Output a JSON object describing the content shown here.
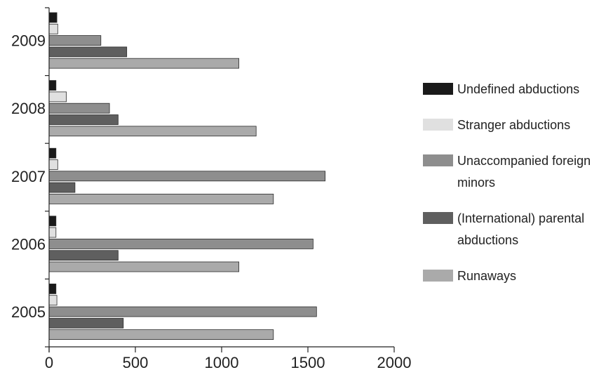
{
  "chart_data": {
    "type": "bar",
    "orientation": "horizontal",
    "title": "",
    "xlabel": "",
    "ylabel": "",
    "xlim": [
      0,
      2000
    ],
    "x_ticks": [
      "0",
      "500",
      "1000",
      "1500",
      "2000"
    ],
    "categories": [
      "2009",
      "2008",
      "2007",
      "2006",
      "2005"
    ],
    "series": [
      {
        "name": "Undefined abductions",
        "color": "#1a1a1a",
        "values": [
          45,
          40,
          40,
          40,
          40
        ]
      },
      {
        "name": "Stranger abductions",
        "color": "#e0e0e0",
        "values": [
          50,
          100,
          50,
          40,
          45
        ]
      },
      {
        "name": "Unaccompanied foreign minors",
        "color": "#8e8e8e",
        "values": [
          300,
          350,
          1600,
          1530,
          1550
        ]
      },
      {
        "name": "(International) parental abductions",
        "color": "#5f5f5f",
        "values": [
          450,
          400,
          150,
          400,
          430
        ]
      },
      {
        "name": "Runaways",
        "color": "#aaaaaa",
        "values": [
          1100,
          1200,
          1300,
          1100,
          1300
        ]
      }
    ],
    "legend": {
      "position": "right",
      "entries": [
        "Undefined abductions",
        "Stranger abductions",
        "Unaccompanied foreign minors",
        "(International) parental abductions",
        "Runaways"
      ]
    },
    "grid": false
  }
}
